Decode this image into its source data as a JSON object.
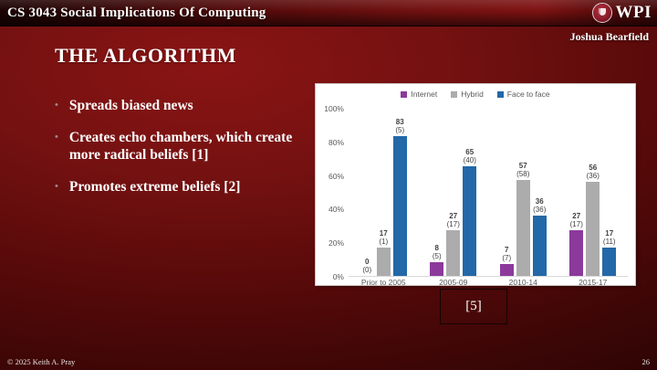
{
  "header": {
    "course_title": "CS 3043 Social Implications Of Computing",
    "logo_text": "WPI",
    "author": "Joshua Bearfield"
  },
  "slide": {
    "title": "THE ALGORITHM",
    "bullets": [
      "Spreads biased news",
      "Creates echo chambers, which create more radical beliefs [1]",
      "Promotes extreme beliefs [2]"
    ],
    "citation": "[5]"
  },
  "footer": {
    "copyright": "© 2025 Keith A. Pray",
    "page_number": "26"
  },
  "colors": {
    "slide_background": "#701010",
    "internet": "#8B3A9B",
    "hybrid": "#ACACAC",
    "face_to_face": "#2368A8",
    "axis_text": "#595959",
    "data_label_text": "#3F3F3F"
  },
  "chart_data": {
    "type": "bar",
    "title": "",
    "xlabel": "",
    "ylabel": "",
    "categories": [
      "Prior to 2005",
      "2005-09",
      "2010-14",
      "2015-17"
    ],
    "series": [
      {
        "name": "Internet",
        "color": "#8B3A9B",
        "values": [
          0,
          8,
          7,
          27
        ],
        "sub_labels": [
          "(0)",
          "(5)",
          "(7)",
          "(17)"
        ]
      },
      {
        "name": "Hybrid",
        "color": "#ACACAC",
        "values": [
          17,
          27,
          57,
          56
        ],
        "sub_labels": [
          "(1)",
          "(17)",
          "(58)",
          "(36)"
        ]
      },
      {
        "name": "Face to face",
        "color": "#2368A8",
        "values": [
          83,
          65,
          36,
          17
        ],
        "sub_labels": [
          "(5)",
          "(40)",
          "(36)",
          "(11)"
        ]
      }
    ],
    "ylim": [
      0,
      100
    ],
    "y_ticks": [
      "0%",
      "20%",
      "40%",
      "60%",
      "80%",
      "100%"
    ],
    "grid": false,
    "legend_position": "top"
  }
}
